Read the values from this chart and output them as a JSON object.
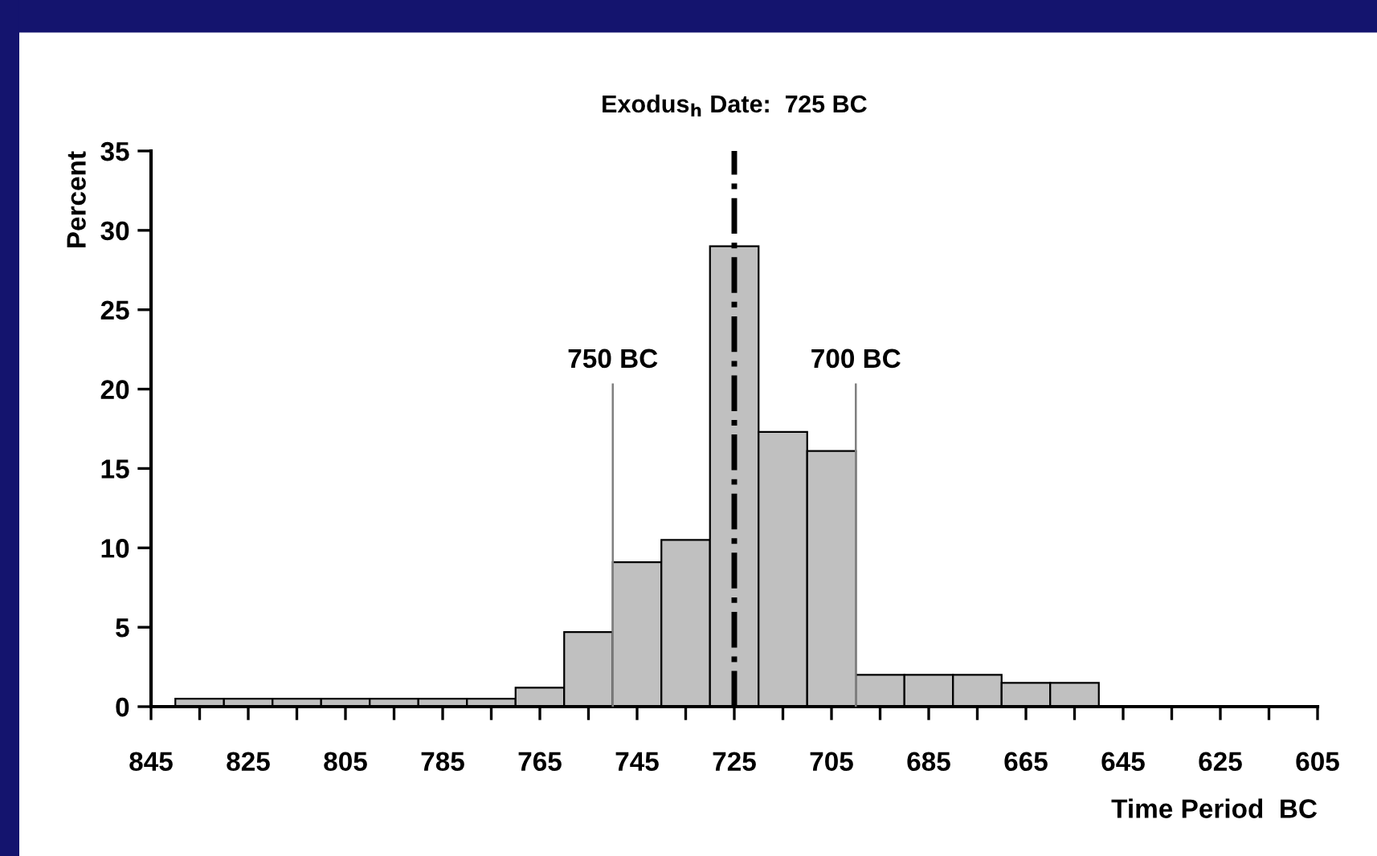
{
  "chart_data": {
    "type": "histogram",
    "xlabel": "Time Period  BC",
    "ylabel": "Percent",
    "bins": [
      840,
      830,
      820,
      810,
      800,
      790,
      780,
      770,
      760,
      750,
      740,
      730,
      720,
      710,
      700,
      690,
      680,
      670,
      660,
      650
    ],
    "values": [
      0.5,
      0.5,
      0.5,
      0.5,
      0.5,
      0.5,
      0.5,
      1.2,
      4.7,
      9.1,
      10.5,
      29,
      17.3,
      16.1,
      2,
      2,
      2,
      1.5,
      1.5
    ],
    "color": "#c0c0c0",
    "xlim": [
      845,
      605
    ],
    "ylim": [
      0,
      35
    ],
    "xticks": [
      845,
      {
        "value": 835,
        "label": null
      },
      825,
      {
        "value": 815,
        "label": null
      },
      805,
      {
        "value": 795,
        "label": null
      },
      785,
      {
        "value": 775,
        "label": null
      },
      765,
      {
        "value": 755,
        "label": null
      },
      745,
      {
        "value": 735,
        "label": null
      },
      725,
      {
        "value": 715,
        "label": null
      },
      705,
      {
        "value": 695,
        "label": null
      },
      685,
      {
        "value": 675,
        "label": null
      },
      665,
      {
        "value": 655,
        "label": null
      },
      645,
      {
        "value": 635,
        "label": null
      },
      625,
      {
        "value": 615,
        "label": null
      },
      605
    ],
    "yticks": [
      0,
      5,
      10,
      15,
      20,
      25,
      30,
      35
    ],
    "ref_lines": [
      {
        "axis": "x",
        "value": 725,
        "label": "Exodus$_{h}$ Date:  725 BC",
        "color": "#000000",
        "line_style": "dashdot"
      },
      {
        "axis": "x",
        "value": 750,
        "label": "750 BC",
        "color": "#808080",
        "line_style": "solid"
      },
      {
        "axis": "x",
        "value": 700,
        "label": "700 BC",
        "color": "#808080",
        "line_style": "solid"
      }
    ],
    "grid": false,
    "legend": false
  }
}
